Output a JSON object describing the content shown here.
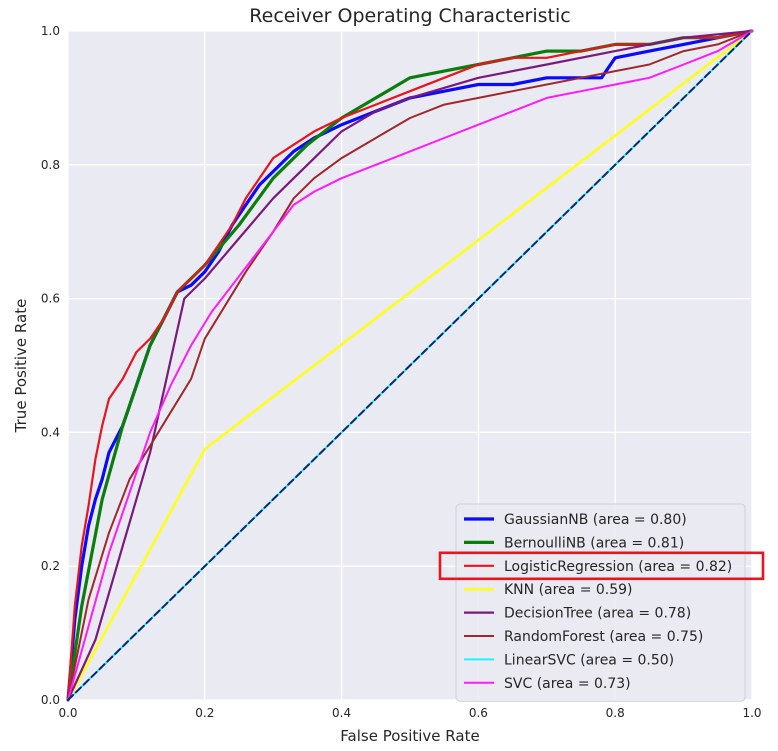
{
  "chart_data": {
    "type": "line",
    "title": "Receiver Operating Characteristic",
    "xlabel": "False Positive Rate",
    "ylabel": "True Positive Rate",
    "xlim": [
      0,
      1
    ],
    "ylim": [
      0,
      1
    ],
    "xticks": [
      "0.0",
      "0.2",
      "0.4",
      "0.6",
      "0.8",
      "1.0"
    ],
    "yticks": [
      "0.0",
      "0.2",
      "0.4",
      "0.6",
      "0.8",
      "1.0"
    ],
    "grid": true,
    "legend_position": "lower-right",
    "highlighted_series": "LogisticRegression",
    "highlight_color": "#e8141e",
    "background": "#eaeaf2",
    "series": [
      {
        "name": "GaussianNB",
        "label": "GaussianNB (area = 0.80)",
        "color": "#0a0aff",
        "width": 3.2,
        "x": [
          0,
          0.01,
          0.02,
          0.03,
          0.04,
          0.05,
          0.06,
          0.08,
          0.1,
          0.12,
          0.14,
          0.16,
          0.18,
          0.2,
          0.22,
          0.24,
          0.26,
          0.28,
          0.3,
          0.33,
          0.36,
          0.4,
          0.45,
          0.5,
          0.55,
          0.6,
          0.65,
          0.7,
          0.75,
          0.78,
          0.8,
          0.85,
          0.9,
          0.95,
          1.0
        ],
        "y": [
          0,
          0.12,
          0.2,
          0.26,
          0.3,
          0.33,
          0.37,
          0.41,
          0.47,
          0.53,
          0.57,
          0.61,
          0.62,
          0.64,
          0.67,
          0.71,
          0.74,
          0.77,
          0.79,
          0.82,
          0.84,
          0.86,
          0.88,
          0.9,
          0.91,
          0.92,
          0.92,
          0.93,
          0.93,
          0.93,
          0.96,
          0.97,
          0.98,
          0.99,
          1.0
        ]
      },
      {
        "name": "BernoulliNB",
        "label": "BernoulliNB (area = 0.81)",
        "color": "#0a7d0a",
        "width": 3.2,
        "x": [
          0,
          0.02,
          0.05,
          0.08,
          0.12,
          0.16,
          0.2,
          0.25,
          0.3,
          0.35,
          0.4,
          0.45,
          0.5,
          0.55,
          0.6,
          0.65,
          0.7,
          0.75,
          0.8,
          0.85,
          0.9,
          0.95,
          1.0
        ],
        "y": [
          0,
          0.14,
          0.3,
          0.41,
          0.53,
          0.61,
          0.65,
          0.71,
          0.78,
          0.83,
          0.87,
          0.9,
          0.93,
          0.94,
          0.95,
          0.96,
          0.97,
          0.97,
          0.98,
          0.98,
          0.99,
          0.99,
          1.0
        ]
      },
      {
        "name": "LogisticRegression",
        "label": "LogisticRegression (area = 0.82)",
        "color": "#e8141e",
        "width": 2.2,
        "x": [
          0,
          0.01,
          0.02,
          0.03,
          0.04,
          0.05,
          0.06,
          0.08,
          0.1,
          0.12,
          0.14,
          0.16,
          0.18,
          0.2,
          0.22,
          0.24,
          0.26,
          0.28,
          0.3,
          0.33,
          0.36,
          0.4,
          0.45,
          0.5,
          0.55,
          0.6,
          0.65,
          0.7,
          0.75,
          0.8,
          0.85,
          0.9,
          0.95,
          1.0
        ],
        "y": [
          0,
          0.14,
          0.23,
          0.29,
          0.36,
          0.41,
          0.45,
          0.48,
          0.52,
          0.54,
          0.57,
          0.61,
          0.63,
          0.65,
          0.68,
          0.71,
          0.75,
          0.78,
          0.81,
          0.83,
          0.85,
          0.87,
          0.89,
          0.91,
          0.93,
          0.95,
          0.96,
          0.96,
          0.97,
          0.98,
          0.98,
          0.99,
          0.99,
          1.0
        ]
      },
      {
        "name": "KNN",
        "label": "KNN (area = 0.59)",
        "color": "#ffff1a",
        "width": 2.6,
        "x": [
          0,
          0.2,
          1.0
        ],
        "y": [
          0,
          0.375,
          1.0
        ]
      },
      {
        "name": "DecisionTree",
        "label": "DecisionTree (area = 0.78)",
        "color": "#7a1a7a",
        "width": 2.2,
        "x": [
          0,
          0.04,
          0.08,
          0.12,
          0.17,
          0.2,
          0.25,
          0.3,
          0.35,
          0.4,
          0.45,
          0.5,
          0.6,
          0.7,
          0.8,
          0.9,
          1.0
        ],
        "y": [
          0,
          0.09,
          0.23,
          0.37,
          0.6,
          0.63,
          0.69,
          0.75,
          0.8,
          0.85,
          0.88,
          0.9,
          0.93,
          0.95,
          0.97,
          0.99,
          1.0
        ]
      },
      {
        "name": "RandomForest",
        "label": "RandomForest (area = 0.75)",
        "color": "#a0282d",
        "width": 2.0,
        "x": [
          0,
          0.03,
          0.06,
          0.09,
          0.12,
          0.15,
          0.18,
          0.2,
          0.23,
          0.26,
          0.3,
          0.33,
          0.36,
          0.4,
          0.45,
          0.5,
          0.55,
          0.6,
          0.65,
          0.7,
          0.75,
          0.8,
          0.85,
          0.9,
          0.95,
          1.0
        ],
        "y": [
          0,
          0.15,
          0.25,
          0.33,
          0.38,
          0.43,
          0.48,
          0.54,
          0.59,
          0.64,
          0.7,
          0.75,
          0.78,
          0.81,
          0.84,
          0.87,
          0.89,
          0.9,
          0.91,
          0.92,
          0.93,
          0.94,
          0.95,
          0.97,
          0.98,
          1.0
        ]
      },
      {
        "name": "LinearSVC",
        "label": "LinearSVC (area = 0.50)",
        "color": "#1af5ff",
        "width": 2.0,
        "x": [
          0,
          1.0
        ],
        "y": [
          0,
          1.0
        ]
      },
      {
        "name": "SVC",
        "label": "SVC (area = 0.73)",
        "color": "#ff1aff",
        "width": 2.0,
        "x": [
          0,
          0.03,
          0.06,
          0.09,
          0.12,
          0.15,
          0.18,
          0.21,
          0.24,
          0.27,
          0.3,
          0.33,
          0.36,
          0.4,
          0.45,
          0.5,
          0.55,
          0.6,
          0.65,
          0.7,
          0.75,
          0.8,
          0.85,
          0.9,
          0.95,
          1.0
        ],
        "y": [
          0,
          0.11,
          0.22,
          0.31,
          0.4,
          0.47,
          0.53,
          0.58,
          0.62,
          0.66,
          0.7,
          0.74,
          0.76,
          0.78,
          0.8,
          0.82,
          0.84,
          0.86,
          0.88,
          0.9,
          0.91,
          0.92,
          0.93,
          0.95,
          0.97,
          1.0
        ]
      },
      {
        "name": "Chance",
        "label": "",
        "color": "#0a2a6e",
        "width": 2.0,
        "dashed": true,
        "x": [
          0,
          1.0
        ],
        "y": [
          0,
          1.0
        ]
      }
    ]
  }
}
